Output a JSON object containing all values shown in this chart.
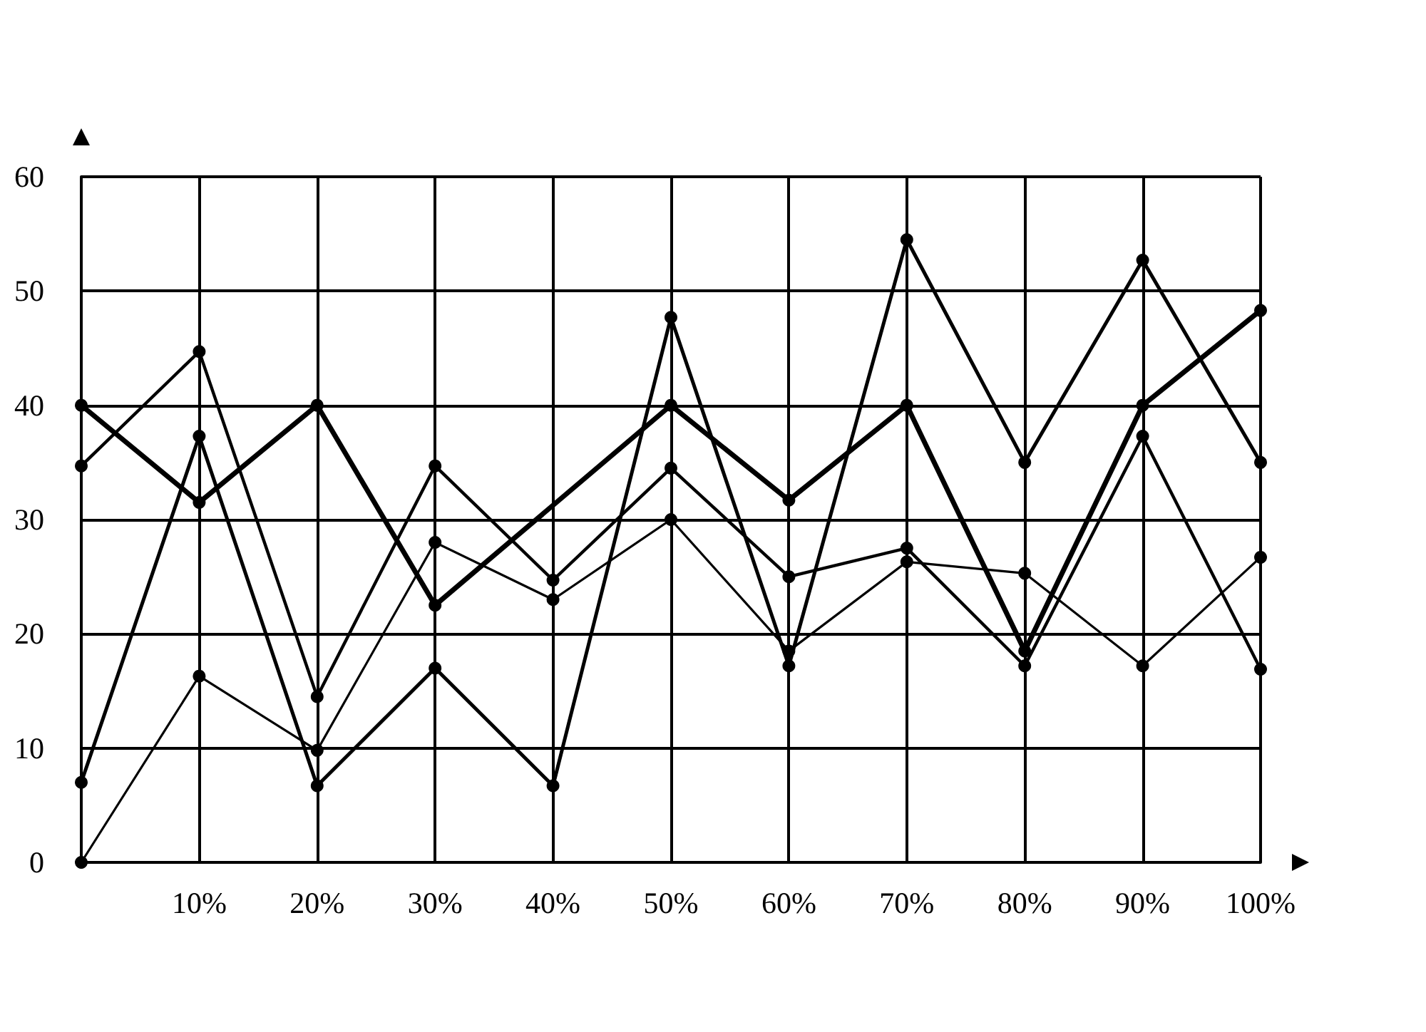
{
  "chart_data": {
    "type": "line",
    "x": [
      0,
      10,
      20,
      30,
      40,
      50,
      60,
      70,
      80,
      90,
      100
    ],
    "series": [
      {
        "color": "#000000",
        "values": [
          40,
          31.5,
          40,
          22.5,
          null,
          40,
          31.7,
          40,
          18.5,
          40,
          48.3
        ]
      },
      {
        "color": "#000000",
        "values": [
          7,
          37.3,
          6.7,
          17,
          6.7,
          47.7,
          17.2,
          54.5,
          35,
          52.7,
          35
        ]
      },
      {
        "color": "#000000",
        "values": [
          34.7,
          44.7,
          14.5,
          34.7,
          24.7,
          34.5,
          25,
          27.5,
          17.2,
          37.3,
          16.9
        ]
      },
      {
        "color": "#000000",
        "values": [
          0,
          16.3,
          9.8,
          28,
          23,
          30,
          18.5,
          26.3,
          25.3,
          17.2,
          26.7
        ]
      }
    ],
    "xlim": [
      0,
      100
    ],
    "xticks": [
      {
        "value": 0,
        "label": null
      },
      {
        "value": 10,
        "label": "10%"
      },
      {
        "value": 20,
        "label": "20%"
      },
      {
        "value": 30,
        "label": "30%"
      },
      {
        "value": 40,
        "label": "40%"
      },
      {
        "value": 50,
        "label": "50%"
      },
      {
        "value": 60,
        "label": "60%"
      },
      {
        "value": 70,
        "label": "70%"
      },
      {
        "value": 80,
        "label": "80%"
      },
      {
        "value": 90,
        "label": "90%"
      },
      {
        "value": 100,
        "label": "100%"
      }
    ],
    "ylim": [
      0,
      60
    ],
    "yticks": [
      0,
      10,
      20,
      30,
      40,
      50,
      60
    ],
    "grid": true,
    "marker": "circle",
    "line_style": "solid"
  }
}
